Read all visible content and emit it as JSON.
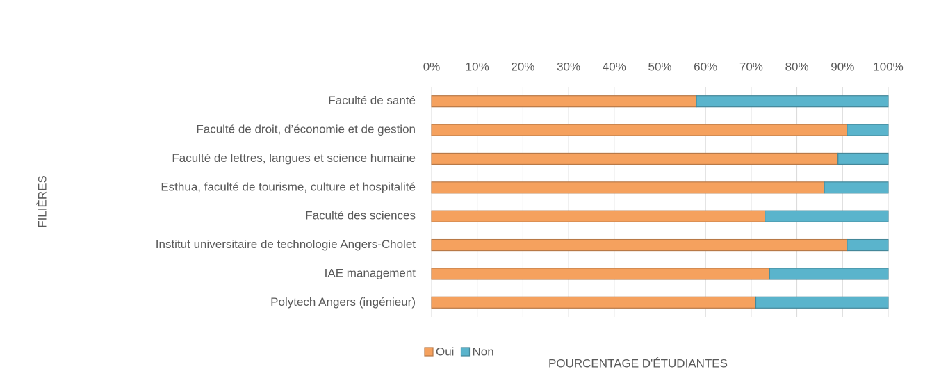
{
  "chart_data": {
    "type": "bar",
    "orientation": "horizontal",
    "stacked": true,
    "categories": [
      "Faculté de santé",
      "Faculté de droit, d’économie et de gestion",
      "Faculté de lettres, langues et science humaine",
      "Esthua, faculté de tourisme, culture et hospitalité",
      "Faculté des sciences",
      "Institut universitaire de technologie Angers-Cholet",
      "IAE management",
      "Polytech Angers (ingénieur)"
    ],
    "series": [
      {
        "name": "Oui",
        "color": "#f5a15e",
        "values": [
          58,
          91,
          89,
          86,
          73,
          91,
          74,
          71
        ]
      },
      {
        "name": "Non",
        "color": "#5ab4cc",
        "values": [
          42,
          9,
          11,
          14,
          27,
          9,
          26,
          29
        ]
      }
    ],
    "xlim": [
      0,
      100
    ],
    "xticks": [
      {
        "value": 0,
        "label": "0%"
      },
      {
        "value": 10,
        "label": "10%"
      },
      {
        "value": 20,
        "label": "20%"
      },
      {
        "value": 30,
        "label": "30%"
      },
      {
        "value": 40,
        "label": "40%"
      },
      {
        "value": 50,
        "label": "50%"
      },
      {
        "value": 60,
        "label": "60%"
      },
      {
        "value": 70,
        "label": "70%"
      },
      {
        "value": 80,
        "label": "80%"
      },
      {
        "value": 90,
        "label": "90%"
      },
      {
        "value": 100,
        "label": "100%"
      }
    ],
    "y_label": "FILIÈRES",
    "x_label": "POURCENTAGE D'ÉTUDIANTES",
    "grid": true,
    "legend": "bottom"
  }
}
